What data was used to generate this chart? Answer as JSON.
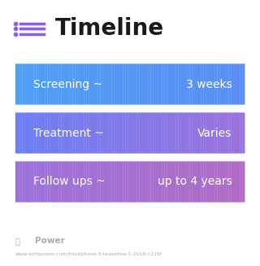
{
  "title": "Timeline",
  "title_fontsize": 20,
  "title_color": "#1a1a1a",
  "background_color": "#ffffff",
  "icon_color": "#8b5cf6",
  "rows": [
    {
      "label": "Screening ~",
      "value": "3 weeks",
      "color_left": "#4d9ef7",
      "color_right": "#5b8ef5"
    },
    {
      "label": "Treatment ~",
      "value": "Varies",
      "color_left": "#6b7ef5",
      "color_right": "#9b72db"
    },
    {
      "label": "Follow ups ~",
      "value": "up to 4 years",
      "color_left": "#9b72db",
      "color_right": "#b06bc5"
    }
  ],
  "footer_logo_text": "Power",
  "footer_url": "www.withpower.com/trial/phase-3-leukemia-1-2018-c215f",
  "footer_color": "#aaaaaa",
  "label_fontsize": 10,
  "value_fontsize": 10
}
